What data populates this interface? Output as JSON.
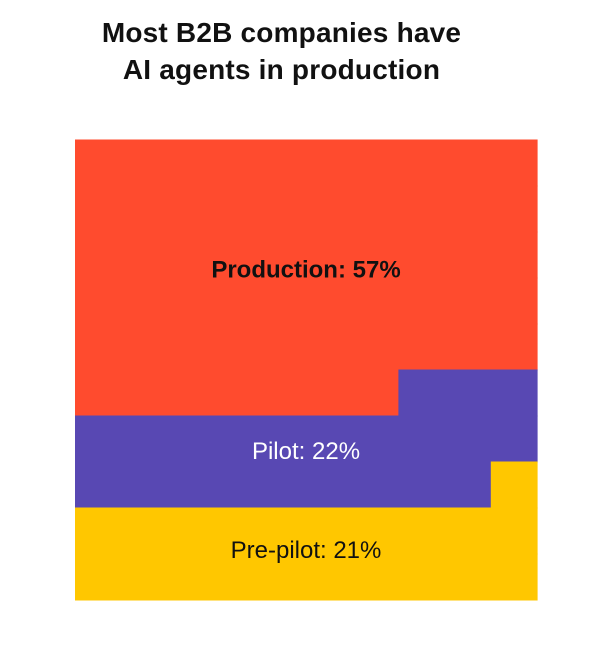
{
  "chart_data": {
    "type": "waffle",
    "title_lines": [
      "Most B2B companies have",
      "AI agents in production"
    ],
    "unit": "%",
    "segments": [
      {
        "label": "Production",
        "value": 57,
        "color": "#FF4B2E",
        "text_color": "#111111",
        "bold": true
      },
      {
        "label": "Pilot",
        "value": 22,
        "color": "#5848B3",
        "text_color": "#ffffff",
        "bold": false
      },
      {
        "label": "Pre-pilot",
        "value": 21,
        "color": "#FFC700",
        "text_color": "#111111",
        "bold": false
      }
    ]
  }
}
